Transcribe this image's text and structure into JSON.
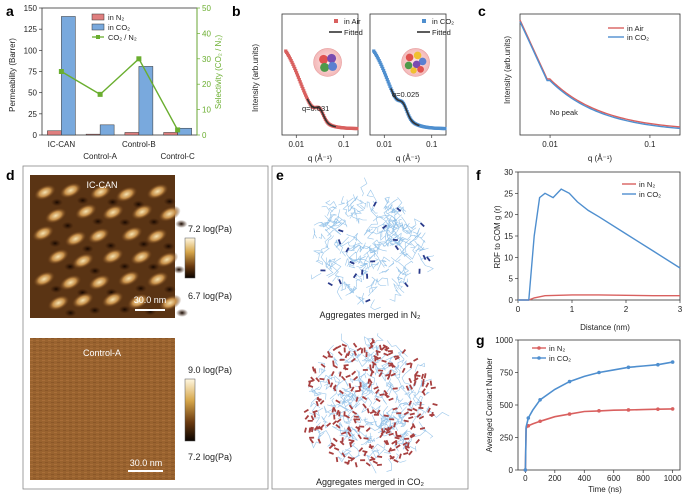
{
  "panels": {
    "a": "a",
    "b": "b",
    "c": "c",
    "d": "d",
    "e": "e",
    "f": "f",
    "g": "g"
  },
  "colors": {
    "red": "#d9605f",
    "blue": "#4f8fcf",
    "green": "#6aae2f",
    "bar_red": "#e07f7f",
    "bar_blue": "#79a9dd",
    "dark": "#333333"
  },
  "chart_data": [
    {
      "id": "a",
      "type": "bar",
      "categories": [
        "IC-CAN",
        "Control-A",
        "Control-B",
        "Control-C"
      ],
      "series": [
        {
          "name": "in N₂",
          "values": [
            5,
            1,
            3,
            3
          ]
        },
        {
          "name": "in CO₂",
          "values": [
            140,
            12,
            81,
            8
          ]
        }
      ],
      "line_series": {
        "name": "CO₂ / N₂",
        "values": [
          25,
          16,
          30,
          2
        ]
      },
      "ylabel": "Permeability (Barrer)",
      "y2label": "Selectivity (CO₂ / N₂)",
      "ylim": [
        0,
        150
      ],
      "y2lim": [
        0,
        50
      ],
      "yticks": [
        "0",
        "25",
        "50",
        "75",
        "100",
        "125",
        "150"
      ],
      "y2ticks": [
        "0",
        "10",
        "20",
        "30",
        "40",
        "50"
      ]
    },
    {
      "id": "b1",
      "type": "scatter",
      "xlabel": "q (Å⁻¹)",
      "ylabel": "Intensity (arb.units)",
      "xscale": "log",
      "xlim": [
        0.005,
        0.2
      ],
      "xticks": [
        "0.01",
        "0.1"
      ],
      "series": [
        {
          "name": "in Air",
          "role": "points"
        },
        {
          "name": "Fitted",
          "role": "line"
        }
      ],
      "annotation": "q=0.031"
    },
    {
      "id": "b2",
      "type": "scatter",
      "xlabel": "q (Å⁻¹)",
      "xscale": "log",
      "xlim": [
        0.005,
        0.2
      ],
      "xticks": [
        "0.01",
        "0.1"
      ],
      "series": [
        {
          "name": "in CO₂",
          "role": "points"
        },
        {
          "name": "Fitted",
          "role": "line"
        }
      ],
      "annotation": "q=0.025"
    },
    {
      "id": "c",
      "type": "line",
      "xlabel": "q (Å⁻¹)",
      "ylabel": "Intensity (arb.units)",
      "xscale": "log",
      "xlim": [
        0.005,
        0.2
      ],
      "xticks": [
        "0.01",
        "0.1"
      ],
      "series": [
        {
          "name": "in Air"
        },
        {
          "name": "in CO₂"
        }
      ],
      "annotation": "No peak"
    },
    {
      "id": "f",
      "type": "line",
      "xlabel": "Distance (nm)",
      "ylabel": "RDF to COM g (r)",
      "xlim": [
        0,
        3
      ],
      "ylim": [
        0,
        30
      ],
      "xticks": [
        "0",
        "1",
        "2",
        "3"
      ],
      "yticks": [
        "0",
        "5",
        "10",
        "15",
        "20",
        "25",
        "30"
      ],
      "series": [
        {
          "name": "in N₂",
          "x": [
            0,
            0.2,
            0.3,
            0.5,
            1,
            1.5,
            2,
            2.5,
            3
          ],
          "y": [
            0,
            0,
            0.5,
            1,
            1.2,
            1.2,
            1.1,
            1.0,
            1.0
          ]
        },
        {
          "name": "in CO₂",
          "x": [
            0,
            0.2,
            0.3,
            0.4,
            0.5,
            0.65,
            0.8,
            0.95,
            1.1,
            1.3,
            1.5,
            2,
            2.5,
            3
          ],
          "y": [
            0,
            0,
            15,
            24,
            25,
            24,
            26,
            25,
            23,
            21,
            19.5,
            15.5,
            11.5,
            7.5
          ]
        }
      ]
    },
    {
      "id": "g",
      "type": "line",
      "xlabel": "Time (ns)",
      "ylabel": "Averaged Contact Number",
      "xlim": [
        -50,
        1050
      ],
      "ylim": [
        0,
        1000
      ],
      "xticks": [
        "0",
        "200",
        "400",
        "600",
        "800",
        "1000"
      ],
      "yticks": [
        "0",
        "250",
        "500",
        "750",
        "1000"
      ],
      "series": [
        {
          "name": "in N₂",
          "x": [
            0,
            5,
            20,
            50,
            100,
            200,
            300,
            400,
            500,
            600,
            700,
            800,
            900,
            1000
          ],
          "y": [
            0,
            320,
            340,
            355,
            375,
            410,
            430,
            450,
            455,
            460,
            462,
            465,
            468,
            470
          ]
        },
        {
          "name": "in CO₂",
          "x": [
            0,
            5,
            20,
            50,
            100,
            200,
            300,
            400,
            500,
            600,
            700,
            800,
            900,
            1000
          ],
          "y": [
            0,
            330,
            400,
            460,
            540,
            620,
            680,
            720,
            750,
            770,
            790,
            800,
            810,
            830
          ]
        }
      ]
    }
  ],
  "d": {
    "top": {
      "label": "IC-CAN",
      "scale_max": "7.2 log(Pa)",
      "scale_min": "6.7 log(Pa)",
      "scalebar": "30.0 nm"
    },
    "bottom": {
      "label": "Control-A",
      "scale_max": "9.0 log(Pa)",
      "scale_min": "7.2 log(Pa)",
      "scalebar": "30.0 nm"
    }
  },
  "e": {
    "top_caption": "Aggregates merged in N₂",
    "bottom_caption": "Aggregates merged in CO₂"
  }
}
